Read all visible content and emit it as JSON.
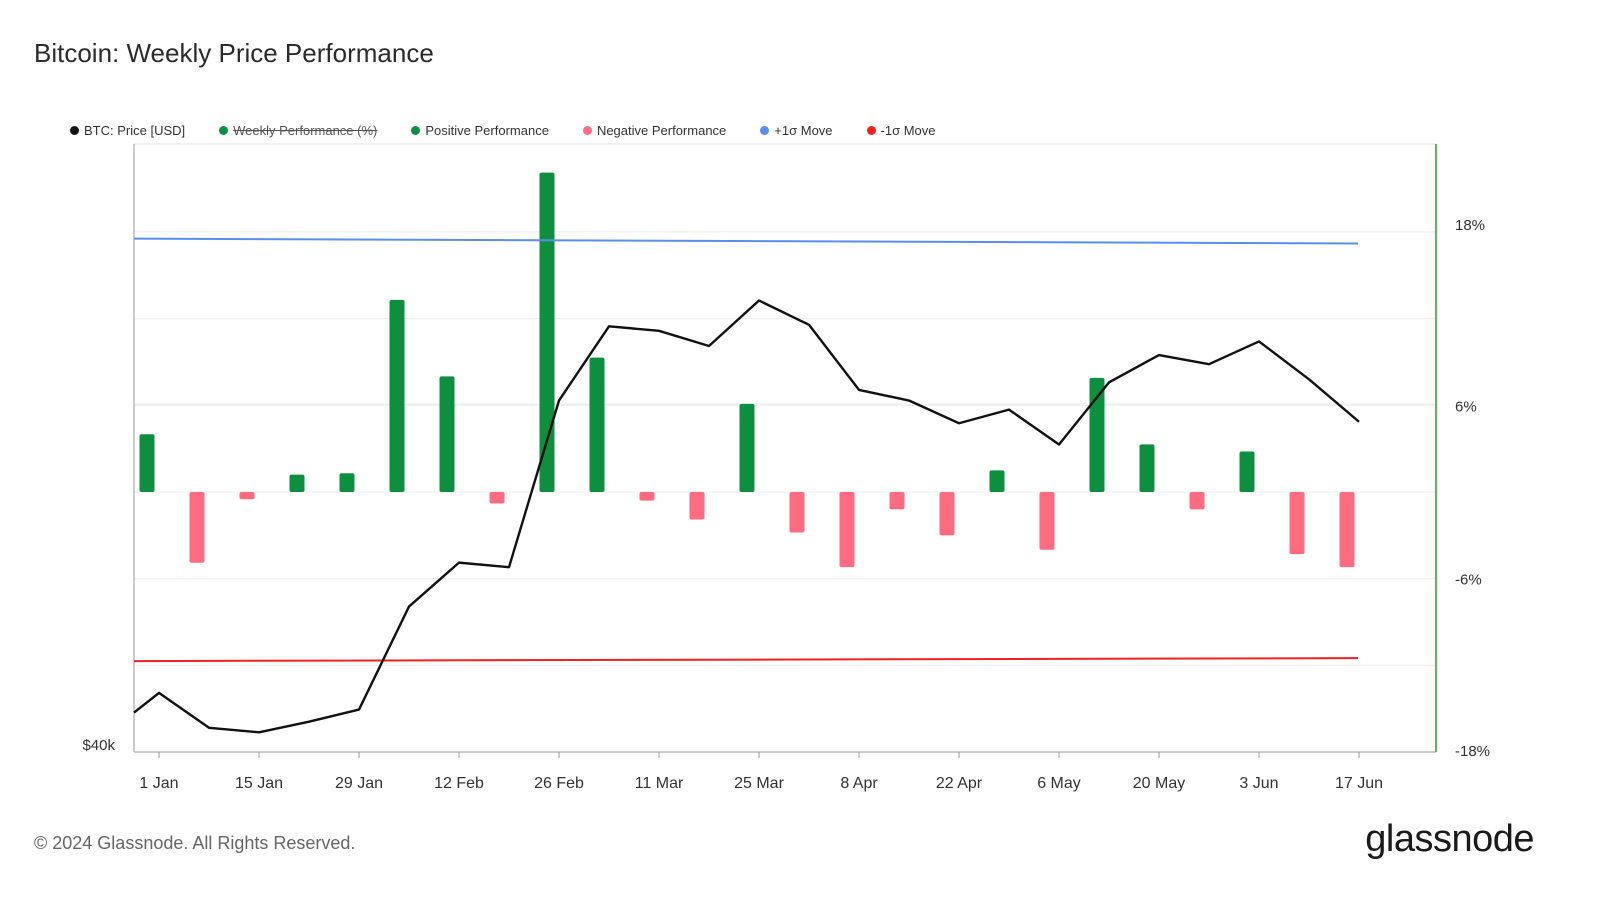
{
  "title": "Bitcoin: Weekly Price Performance",
  "legend": [
    {
      "label": "BTC: Price [USD]",
      "color": "#111111",
      "hidden": false
    },
    {
      "label": "Weekly Performance (%)",
      "color": "#0d8f3f",
      "hidden": true
    },
    {
      "label": "Positive Performance",
      "color": "#0d8f3f",
      "hidden": false
    },
    {
      "label": "Negative Performance",
      "color": "#ff6b81",
      "hidden": false
    },
    {
      "label": "+1σ Move",
      "color": "#5b8def",
      "hidden": false
    },
    {
      "label": "-1σ Move",
      "color": "#f02020",
      "hidden": false
    }
  ],
  "footer": "© 2024 Glassnode. All Rights Reserved.",
  "brand": "glassnode",
  "chart_data": {
    "type": "bar",
    "x_tick_labels": [
      "1 Jan",
      "15 Jan",
      "29 Jan",
      "12 Feb",
      "26 Feb",
      "11 Mar",
      "25 Mar",
      "8 Apr",
      "22 Apr",
      "6 May",
      "20 May",
      "3 Jun",
      "17 Jun"
    ],
    "left_axis": {
      "label": "",
      "visible_tick": "$40k",
      "min": 40000,
      "max": 75000
    },
    "right_axis": {
      "ticks": [
        18,
        6,
        -6,
        -18
      ],
      "tick_labels": [
        "18%",
        "6%",
        "-6%",
        "-18%"
      ],
      "min": -18,
      "max": 18
    },
    "weeks": [
      "1 Jan",
      "8 Jan",
      "15 Jan",
      "22 Jan",
      "29 Jan",
      "5 Feb",
      "12 Feb",
      "19 Feb",
      "26 Feb",
      "4 Mar",
      "11 Mar",
      "18 Mar",
      "25 Mar",
      "1 Apr",
      "8 Apr",
      "15 Apr",
      "22 Apr",
      "29 Apr",
      "6 May",
      "13 May",
      "20 May",
      "27 May",
      "3 Jun",
      "10 Jun",
      "17 Jun"
    ],
    "series": [
      {
        "name": "BTC: Price [USD]",
        "type": "line",
        "color": "#111111",
        "points": [
          {
            "x": "29 Dec",
            "y": 42600
          },
          {
            "x": "1 Jan",
            "y": 43900
          },
          {
            "x": "8 Jan",
            "y": 41600
          },
          {
            "x": "15 Jan",
            "y": 41300
          },
          {
            "x": "22 Jan",
            "y": 42000
          },
          {
            "x": "29 Jan",
            "y": 42800
          },
          {
            "x": "5 Feb",
            "y": 49600
          },
          {
            "x": "12 Feb",
            "y": 52500
          },
          {
            "x": "19 Feb",
            "y": 52200
          },
          {
            "x": "26 Feb",
            "y": 63200
          },
          {
            "x": "4 Mar",
            "y": 68100
          },
          {
            "x": "11 Mar",
            "y": 67800
          },
          {
            "x": "18 Mar",
            "y": 66800
          },
          {
            "x": "25 Mar",
            "y": 69800
          },
          {
            "x": "1 Apr",
            "y": 68200
          },
          {
            "x": "8 Apr",
            "y": 63900
          },
          {
            "x": "15 Apr",
            "y": 63200
          },
          {
            "x": "22 Apr",
            "y": 61700
          },
          {
            "x": "29 Apr",
            "y": 62600
          },
          {
            "x": "6 May",
            "y": 60300
          },
          {
            "x": "13 May",
            "y": 64400
          },
          {
            "x": "20 May",
            "y": 66200
          },
          {
            "x": "27 May",
            "y": 65600
          },
          {
            "x": "3 Jun",
            "y": 67100
          },
          {
            "x": "10 Jun",
            "y": 64600
          },
          {
            "x": "17 Jun",
            "y": 61800
          }
        ]
      },
      {
        "name": "Weekly Performance (%)",
        "type": "bar",
        "values": [
          4.0,
          -4.9,
          -0.5,
          1.2,
          1.3,
          13.3,
          8.0,
          -0.8,
          22.1,
          9.3,
          -0.6,
          -1.9,
          6.1,
          -2.8,
          -5.2,
          -1.2,
          -3.0,
          1.5,
          -4.0,
          7.9,
          3.3,
          -1.2,
          2.8,
          -4.3,
          -5.2
        ]
      },
      {
        "name": "+1σ Move",
        "type": "line",
        "color": "#5b8def",
        "values": [
          17.5,
          17.2
        ]
      },
      {
        "name": "-1σ Move",
        "type": "line",
        "color": "#f02020",
        "values": [
          -11.7,
          -11.5
        ]
      }
    ],
    "colors": {
      "positive": "#0d8f3f",
      "negative": "#ff6b81",
      "axis_right": "#2e9a2e",
      "grid": "#ececec"
    },
    "grid": true,
    "legend_position": "top-left"
  }
}
